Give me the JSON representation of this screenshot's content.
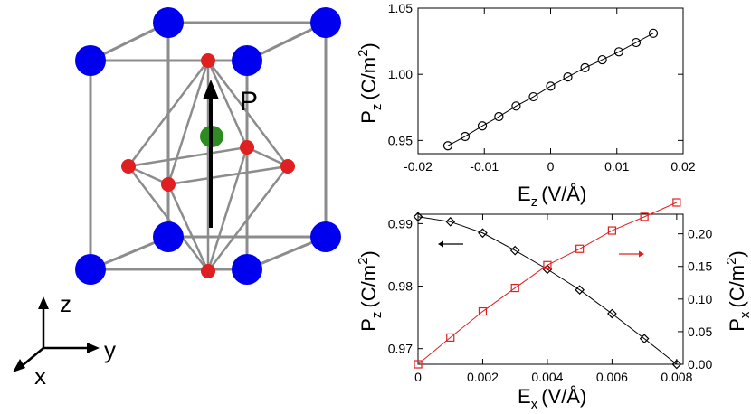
{
  "crystal": {
    "polarization_label": "P",
    "axes": {
      "z": "z",
      "y": "y",
      "x": "x"
    },
    "colors": {
      "a_site": "#0000ee",
      "oxygen": "#e02020",
      "b_site": "#2e8b22",
      "bonds": "#8c8c8c"
    }
  },
  "chart_data": [
    {
      "type": "scatter",
      "marker": "circle",
      "x": [
        -0.0155,
        -0.0129,
        -0.0103,
        -0.0078,
        -0.0052,
        -0.0026,
        0.0,
        0.0026,
        0.0052,
        0.0078,
        0.0103,
        0.0129,
        0.0155
      ],
      "series": [
        {
          "values": [
            0.946,
            0.953,
            0.961,
            0.968,
            0.976,
            0.983,
            0.991,
            0.998,
            1.005,
            1.011,
            1.017,
            1.024,
            1.031
          ]
        }
      ],
      "xlabel": {
        "base": "E",
        "sub": "z",
        "unit": "(V/Å)"
      },
      "ylabel": {
        "base": "P",
        "sub": "z",
        "unit_pre": "(C/m",
        "sup": "2",
        "unit_post": ")"
      },
      "xlim": [
        -0.02,
        0.02
      ],
      "ylim": [
        0.94,
        1.05
      ],
      "xticks": [
        -0.02,
        -0.01,
        0,
        0.01,
        0.02
      ],
      "xticklabels": [
        "-0.02",
        "-0.01",
        "0",
        "0.01",
        "0.02"
      ],
      "yticks": [
        0.95,
        1.0,
        1.05
      ],
      "yticklabels": [
        "0.95",
        "1.00",
        "1.05"
      ],
      "colors": {
        "series": "#000000"
      }
    },
    {
      "type": "scatter",
      "x": [
        0.0,
        0.001,
        0.002,
        0.003,
        0.004,
        0.005,
        0.006,
        0.007,
        0.008
      ],
      "series": [
        {
          "axis": "left",
          "marker": "diamond",
          "color": "#000000",
          "values": [
            0.9911,
            0.9903,
            0.9885,
            0.9857,
            0.9827,
            0.9794,
            0.9756,
            0.9716,
            0.9675
          ]
        },
        {
          "axis": "right",
          "marker": "square",
          "color": "#e02020",
          "values": [
            0.0,
            0.041,
            0.081,
            0.117,
            0.152,
            0.177,
            0.205,
            0.226,
            0.248
          ]
        }
      ],
      "xlabel": {
        "base": "E",
        "sub": "x",
        "unit": "(V/Å)"
      },
      "ylabel_left": {
        "base": "P",
        "sub": "z",
        "unit_pre": "(C/m",
        "sup": "2",
        "unit_post": ")"
      },
      "ylabel_right": {
        "base": "P",
        "sub": "x",
        "unit_pre": "(C/m",
        "sup": "2",
        "unit_post": ")"
      },
      "xlim": [
        0,
        0.0082
      ],
      "ylim_left": [
        0.9675,
        0.9915
      ],
      "ylim_right": [
        0,
        0.23
      ],
      "xticks": [
        0,
        0.002,
        0.004,
        0.006,
        0.008
      ],
      "xticklabels": [
        "0",
        "0.002",
        "0.004",
        "0.006",
        "0.008"
      ],
      "yticks_left": [
        0.97,
        0.98,
        0.99
      ],
      "yticklabels_left": [
        "0.97",
        "0.98",
        "0.99"
      ],
      "yticks_right": [
        0,
        0.05,
        0.1,
        0.15,
        0.2
      ],
      "yticklabels_right": [
        "0.00",
        "0.05",
        "0.10",
        "0.15",
        "0.20"
      ]
    }
  ]
}
